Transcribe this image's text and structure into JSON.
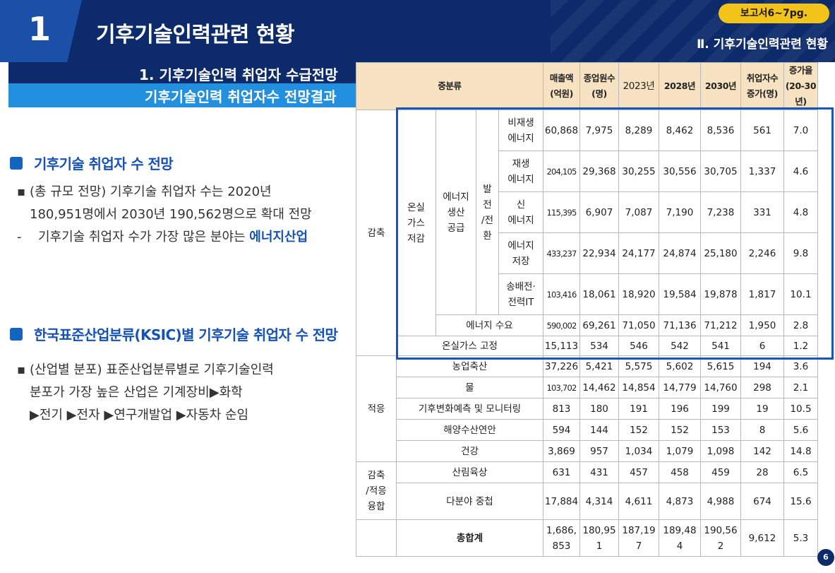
{
  "header": {
    "number": "1",
    "title": "기후기술인력관련 현황",
    "badge": "보고서6~7pg.",
    "chapter": "Ⅱ. 기후기술인력관련 현황"
  },
  "section": {
    "title1": "1. 기후기술인력 취업자 수급전망",
    "title2": "기후기술인력 취업자수 전망결과"
  },
  "left": {
    "block1": {
      "heading": "기후기술 취업자 수 전망",
      "line1": "(총 규모 전망) 기후기술 취업자 수는 2020년",
      "line2": "180,951명에서 2030년 190,562명으로 확대 전망",
      "line3_prefix": "기후기술 취업자 수가 가장 많은 분야는 ",
      "line3_emph": "에너지산업",
      "bullet": "▪",
      "dash": "-"
    },
    "block2": {
      "heading": "한국표준산업분류(KSIC)별 기후기술 취업자 수 전망",
      "line1": "(산업별 분포) 표준산업분류별로 기후기술인력",
      "line2": "분포가 가장 높은 산업은 기계장비▶화학",
      "line3": "▶전기 ▶전자 ▶연구개발업 ▶자동차 순임",
      "bullet": "▪"
    }
  },
  "table": {
    "headers": {
      "mid": "중분류",
      "sales": [
        "매출액",
        "(억원)"
      ],
      "workers": [
        "종업원수",
        "(명)"
      ],
      "y2023": "2023년",
      "y2028": "2028년",
      "y2030": "2030년",
      "inc": [
        "취업자수",
        "증가(명)"
      ],
      "rate": [
        "증가율",
        "(20-30년)"
      ]
    },
    "groups": {
      "reduction": "감축",
      "ghg": [
        "온실",
        "가스",
        "저감"
      ],
      "energy": [
        "에너지",
        "생산",
        "공급"
      ],
      "gen": [
        "발",
        "전",
        "/전",
        "환"
      ],
      "adaptation": "적응",
      "convergence": [
        "감축",
        "/적응",
        "융합"
      ]
    },
    "rows": [
      {
        "label": [
          "비재생",
          "에너지"
        ],
        "sales": "60,868",
        "workers": "7,975",
        "y2023": "8,289",
        "y2028": "8,462",
        "y2030": "8,536",
        "inc": "561",
        "rate": "7.0"
      },
      {
        "label": [
          "재생",
          "에너지"
        ],
        "sales": "204,105",
        "workers": "29,368",
        "y2023": "30,255",
        "y2028": "30,556",
        "y2030": "30,705",
        "inc": "1,337",
        "rate": "4.6"
      },
      {
        "label": [
          "신",
          "에너지"
        ],
        "sales": "115,395",
        "workers": "6,907",
        "y2023": "7,087",
        "y2028": "7,190",
        "y2030": "7,238",
        "inc": "331",
        "rate": "4.8"
      },
      {
        "label": [
          "에너지",
          "저장"
        ],
        "sales": "433,237",
        "workers": "22,934",
        "y2023": "24,177",
        "y2028": "24,874",
        "y2030": "25,180",
        "inc": "2,246",
        "rate": "9.8"
      },
      {
        "label": [
          "송배전·",
          "전력IT"
        ],
        "sales": "103,416",
        "workers": "18,061",
        "y2023": "18,920",
        "y2028": "19,584",
        "y2030": "19,878",
        "inc": "1,817",
        "rate": "10.1"
      },
      {
        "label": "에너지 수요",
        "sales": "590,002",
        "workers": "69,261",
        "y2023": "71,050",
        "y2028": "71,136",
        "y2030": "71,212",
        "inc": "1,950",
        "rate": "2.8"
      },
      {
        "label": "온실가스 고정",
        "sales": "15,113",
        "workers": "534",
        "y2023": "546",
        "y2028": "542",
        "y2030": "541",
        "inc": "6",
        "rate": "1.2"
      },
      {
        "label": "농업축산",
        "sales": "37,226",
        "workers": "5,421",
        "y2023": "5,575",
        "y2028": "5,602",
        "y2030": "5,615",
        "inc": "194",
        "rate": "3.6"
      },
      {
        "label": "물",
        "sales": "103,702",
        "workers": "14,462",
        "y2023": "14,854",
        "y2028": "14,779",
        "y2030": "14,760",
        "inc": "298",
        "rate": "2.1"
      },
      {
        "label": "기후변화예측 및 모니터링",
        "sales": "813",
        "workers": "180",
        "y2023": "191",
        "y2028": "196",
        "y2030": "199",
        "inc": "19",
        "rate": "10.5"
      },
      {
        "label": "해양수산연안",
        "sales": "594",
        "workers": "144",
        "y2023": "152",
        "y2028": "152",
        "y2030": "153",
        "inc": "8",
        "rate": "5.6"
      },
      {
        "label": "건강",
        "sales": "3,869",
        "workers": "957",
        "y2023": "1,034",
        "y2028": "1,079",
        "y2030": "1,098",
        "inc": "142",
        "rate": "14.8"
      },
      {
        "label": "산림육상",
        "sales": "631",
        "workers": "431",
        "y2023": "457",
        "y2028": "458",
        "y2030": "459",
        "inc": "28",
        "rate": "6.5"
      },
      {
        "label": "다분야 중첩",
        "sales": "17,884",
        "workers": "4,314",
        "y2023": "4,611",
        "y2028": "4,873",
        "y2030": "4,988",
        "inc": "674",
        "rate": "15.6"
      }
    ],
    "total": {
      "label": "총합계",
      "sales": [
        "1,686,",
        "853"
      ],
      "workers": [
        "180,95",
        "1"
      ],
      "y2023": [
        "187,19",
        "7"
      ],
      "y2028": [
        "189,48",
        "4"
      ],
      "y2030": [
        "190,56",
        "2"
      ],
      "inc": "9,612",
      "rate": "5.3"
    }
  },
  "page_number": "6",
  "colors": {
    "navy": "#0d2a6b",
    "blue": "#2290df",
    "accent_text": "#1552b8",
    "badge": "#f2c318",
    "table_header": "#f7e3c1",
    "highlight_border": "#1556c0"
  }
}
